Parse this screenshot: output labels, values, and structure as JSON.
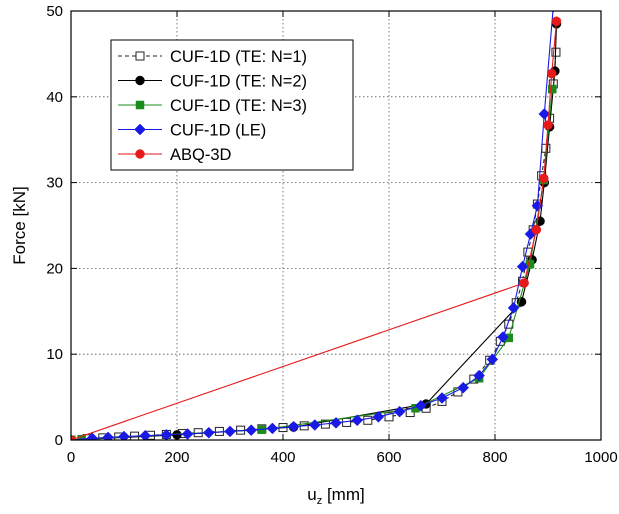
{
  "chart_data": {
    "type": "line",
    "title": "",
    "xlabel": "u",
    "xlabel_sub": "z",
    "xlabel_unit": " [mm]",
    "ylabel": "Force [kN]",
    "xlim": [
      0,
      1000
    ],
    "ylim": [
      0,
      50
    ],
    "xticks": [
      0,
      200,
      400,
      600,
      800,
      1000
    ],
    "yticks": [
      0,
      10,
      20,
      30,
      40,
      50
    ],
    "grid": true,
    "grid_style": "dotted",
    "legend_position": "top-left",
    "series": [
      {
        "name": "CUF-1D (TE: N=1)",
        "color": "#222222",
        "line_style": "dashed",
        "marker": "open-square",
        "x": [
          0,
          30,
          60,
          90,
          120,
          150,
          180,
          210,
          240,
          280,
          320,
          360,
          400,
          440,
          480,
          520,
          560,
          600,
          640,
          670,
          700,
          730,
          760,
          790,
          810,
          826,
          840,
          852,
          862,
          872,
          880,
          888,
          896,
          903,
          910,
          915
        ],
        "y": [
          0,
          0.15,
          0.25,
          0.35,
          0.45,
          0.55,
          0.65,
          0.75,
          0.85,
          1.0,
          1.15,
          1.3,
          1.45,
          1.65,
          1.85,
          2.05,
          2.3,
          2.7,
          3.2,
          3.7,
          4.5,
          5.6,
          7.1,
          9.3,
          11.5,
          13.5,
          16.0,
          18.5,
          21.9,
          24.5,
          27.5,
          30.8,
          34.0,
          37.5,
          41.5,
          45.2
        ]
      },
      {
        "name": "CUF-1D (TE: N=2)",
        "color": "#000000",
        "line_style": "solid",
        "marker": "filled-circle",
        "x": [
          0,
          200,
          420,
          670,
          850,
          870,
          885,
          893,
          903,
          913,
          916
        ],
        "y": [
          0,
          0.6,
          1.5,
          4.2,
          16.1,
          21.0,
          25.5,
          30.0,
          36.5,
          43.0,
          48.5
        ]
      },
      {
        "name": "CUF-1D (TE: N=3)",
        "color": "#1a8c1a",
        "line_style": "solid",
        "marker": "filled-square",
        "x": [
          0,
          20,
          360,
          650,
          770,
          826,
          866,
          892,
          908
        ],
        "y": [
          0,
          0.1,
          1.2,
          3.7,
          7.2,
          11.9,
          20.5,
          30.3,
          40.9
        ]
      },
      {
        "name": "CUF-1D (LE)",
        "color": "#1a1ae6",
        "line_style": "solid",
        "marker": "filled-diamond",
        "x": [
          0,
          40,
          70,
          100,
          140,
          180,
          220,
          260,
          300,
          340,
          380,
          420,
          460,
          500,
          540,
          580,
          620,
          660,
          700,
          740,
          770,
          795,
          815,
          835,
          852,
          867,
          880,
          893,
          910
        ],
        "y": [
          0,
          0.2,
          0.3,
          0.4,
          0.5,
          0.6,
          0.7,
          0.85,
          1.0,
          1.15,
          1.35,
          1.55,
          1.75,
          2.0,
          2.3,
          2.7,
          3.3,
          4.0,
          4.9,
          6.1,
          7.5,
          9.4,
          12.0,
          15.4,
          20.2,
          24.0,
          27.3,
          38.0,
          50.5
        ]
      },
      {
        "name": "ABQ-3D",
        "color": "#e61a1a",
        "line_style": "solid",
        "marker": "filled-circle",
        "x": [
          0,
          855,
          878,
          892,
          900,
          907,
          916
        ],
        "y": [
          0,
          18.3,
          24.5,
          30.5,
          36.7,
          42.7,
          48.8
        ]
      }
    ]
  }
}
